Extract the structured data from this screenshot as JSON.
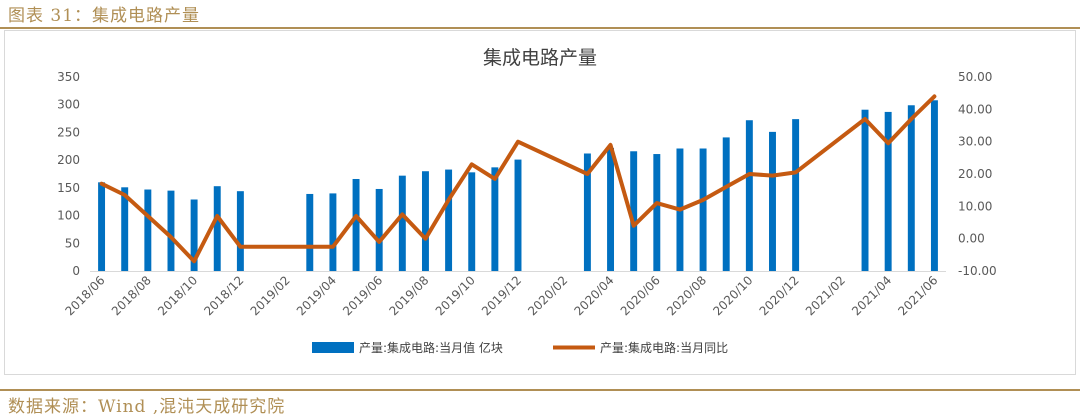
{
  "figure_label": "图表 31：集成电路产量",
  "source": "数据来源：Wind ,混沌天成研究院",
  "colors": {
    "bar": "#0070c0",
    "line": "#c55a11",
    "axis": "#d9d9d9",
    "accent": "#b08f55"
  },
  "chart_data": {
    "type": "bar",
    "title": "集成电路产量",
    "legend": {
      "placement": "bottom",
      "bar_label": "产量:集成电路:当月值 亿块",
      "line_label": "产量:集成电路:当月同比"
    },
    "categories": [
      "2018/06",
      "2018/07",
      "2018/08",
      "2018/09",
      "2018/10",
      "2018/11",
      "2018/12",
      "2019/01",
      "2019/02",
      "2019/03",
      "2019/04",
      "2019/05",
      "2019/06",
      "2019/07",
      "2019/08",
      "2019/09",
      "2019/10",
      "2019/11",
      "2019/12",
      "2020/01",
      "2020/02",
      "2020/03",
      "2020/04",
      "2020/05",
      "2020/06",
      "2020/07",
      "2020/08",
      "2020/09",
      "2020/10",
      "2020/11",
      "2020/12",
      "2021/01",
      "2021/02",
      "2021/03",
      "2021/04",
      "2021/05",
      "2021/06"
    ],
    "tick_labels": [
      "2018/06",
      "2018/08",
      "2018/10",
      "2018/12",
      "2019/02",
      "2019/04",
      "2019/06",
      "2019/08",
      "2019/10",
      "2019/12",
      "2020/02",
      "2020/04",
      "2020/06",
      "2020/08",
      "2020/10",
      "2020/12",
      "2021/02",
      "2021/04",
      "2021/06"
    ],
    "bar_series": {
      "name": "产量:集成电路:当月值 亿块",
      "values": [
        160,
        151,
        147,
        145,
        129,
        153,
        144,
        null,
        null,
        139,
        140,
        166,
        148,
        172,
        180,
        183,
        178,
        187,
        201,
        null,
        null,
        212,
        222,
        216,
        211,
        221,
        221,
        241,
        272,
        251,
        274,
        null,
        null,
        291,
        287,
        299,
        308
      ]
    },
    "line_series": {
      "name": "产量:集成电路:当月同比",
      "values": [
        17,
        13.5,
        7,
        0.5,
        -7,
        7,
        -2.5,
        -2.5,
        -2.5,
        -2.5,
        -2.5,
        7,
        -1,
        7.5,
        0,
        12,
        23,
        18.5,
        30,
        null,
        null,
        20,
        29,
        4,
        11,
        9,
        12,
        16,
        20,
        19.5,
        20.5,
        null,
        null,
        37,
        29.5,
        37,
        44
      ]
    },
    "y_left": {
      "min": 0,
      "max": 350,
      "ticks": [
        "0",
        "50",
        "100",
        "150",
        "200",
        "250",
        "300",
        "350"
      ]
    },
    "y_right": {
      "min": -10,
      "max": 50,
      "ticks": [
        "-10.00",
        "0.00",
        "10.00",
        "20.00",
        "30.00",
        "40.00",
        "50.00"
      ]
    },
    "grid": false
  }
}
